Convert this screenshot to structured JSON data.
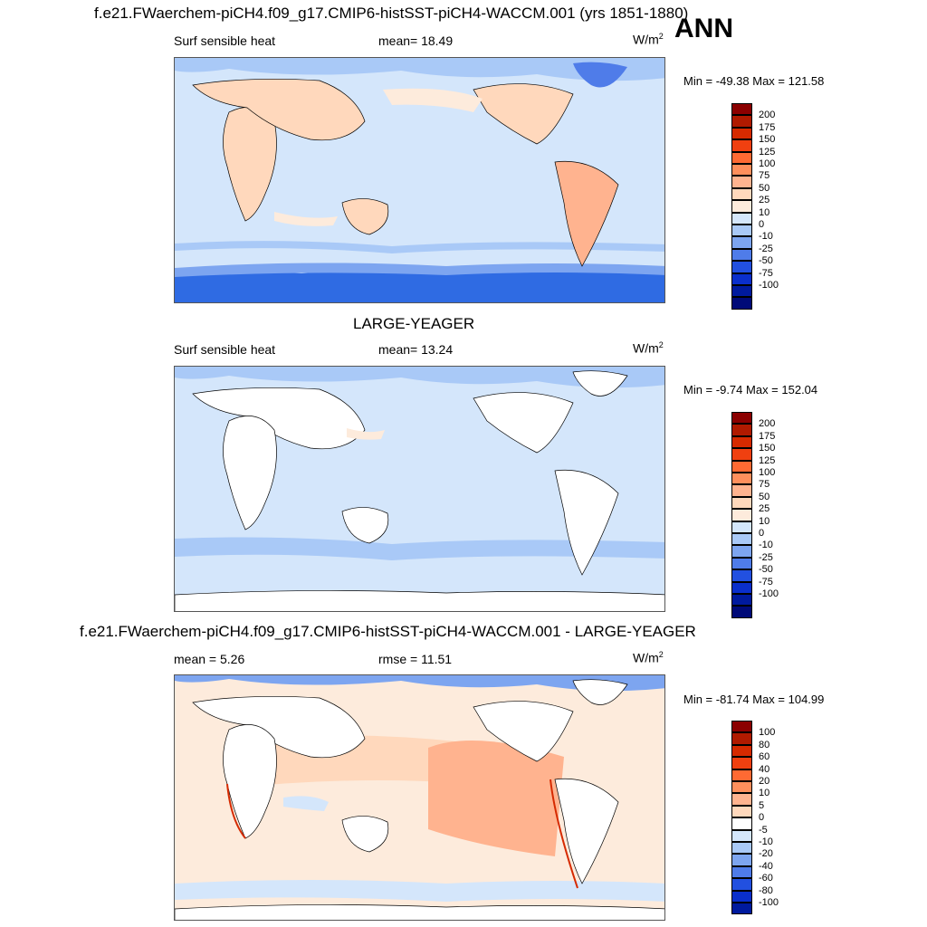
{
  "figure": {
    "title_top": "f.e21.FWaerchem-piCH4.f09_g17.CMIP6-histSST-piCH4-WACCM.001 (yrs 1851-1880)",
    "season": "ANN"
  },
  "panels": [
    {
      "id": "test",
      "title": "",
      "left_label": "Surf sensible heat",
      "stat_label": "mean=  18.49",
      "units": "W/m",
      "units_sup": "2",
      "minmax": "Min = -49.38 Max = 121.58",
      "colorbar": {
        "labels": [
          "200",
          "175",
          "150",
          "125",
          "100",
          "75",
          "50",
          "25",
          "10",
          "0",
          "-10",
          "-25",
          "-50",
          "-75",
          "-100"
        ],
        "colors": [
          "#8b0000",
          "#b01a00",
          "#d62a00",
          "#f04010",
          "#ff6a33",
          "#ff8f5c",
          "#ffb38f",
          "#ffd8bc",
          "#fdebdc",
          "#d4e6fb",
          "#a9c9f7",
          "#7da5f0",
          "#4f7ce9",
          "#2250e0",
          "#0a2fcc",
          "#001a9e",
          "#000a78"
        ]
      }
    },
    {
      "id": "control",
      "title": "LARGE-YEAGER",
      "left_label": "Surf sensible heat",
      "stat_label": "mean=  13.24",
      "units": "W/m",
      "units_sup": "2",
      "minmax": "Min =  -9.74 Max = 152.04",
      "colorbar": {
        "labels": [
          "200",
          "175",
          "150",
          "125",
          "100",
          "75",
          "50",
          "25",
          "10",
          "0",
          "-10",
          "-25",
          "-50",
          "-75",
          "-100"
        ],
        "colors": [
          "#8b0000",
          "#b01a00",
          "#d62a00",
          "#f04010",
          "#ff6a33",
          "#ff8f5c",
          "#ffb38f",
          "#ffd8bc",
          "#fdebdc",
          "#d4e6fb",
          "#a9c9f7",
          "#7da5f0",
          "#4f7ce9",
          "#2250e0",
          "#0a2fcc",
          "#001a9e",
          "#000a78"
        ]
      }
    },
    {
      "id": "difference",
      "title": "f.e21.FWaerchem-piCH4.f09_g17.CMIP6-histSST-piCH4-WACCM.001 - LARGE-YEAGER",
      "left_label": "mean =   5.26",
      "stat_label": "rmse =  11.51",
      "units": "W/m",
      "units_sup": "2",
      "minmax": "Min = -81.74 Max = 104.99",
      "colorbar": {
        "labels": [
          "100",
          "80",
          "60",
          "40",
          "20",
          "10",
          "5",
          "0",
          "-5",
          "-10",
          "-20",
          "-40",
          "-60",
          "-80",
          "-100"
        ],
        "colors": [
          "#8b0000",
          "#b01a00",
          "#d62a00",
          "#f04010",
          "#ff6a33",
          "#ff8f5c",
          "#ffb38f",
          "#ffd8bc",
          "#ffffff",
          "#d4e6fb",
          "#a9c9f7",
          "#7da5f0",
          "#4f7ce9",
          "#2250e0",
          "#0a2fcc",
          "#001a9e"
        ]
      }
    }
  ]
}
